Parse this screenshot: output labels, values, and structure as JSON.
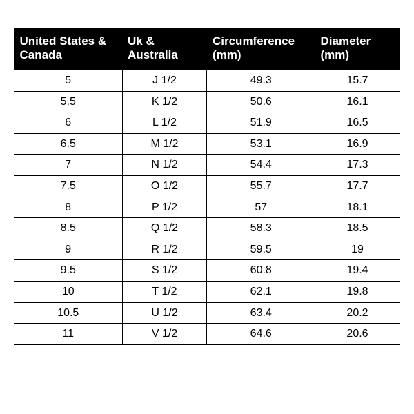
{
  "table": {
    "type": "table",
    "background_color": "#ffffff",
    "header_bg": "#000000",
    "header_fg": "#ffffff",
    "border_color": "#000000",
    "header_fontsize": 17,
    "cell_fontsize": 16,
    "columns": [
      {
        "line1": "United States &",
        "line2": "Canada"
      },
      {
        "line1": "Uk &",
        "line2": "Australia"
      },
      {
        "line1": "Circumference",
        "line2": "(mm)"
      },
      {
        "line1": "Diameter",
        "line2": "(mm)"
      }
    ],
    "rows": [
      [
        "5",
        "J 1/2",
        "49.3",
        "15.7"
      ],
      [
        "5.5",
        "K 1/2",
        "50.6",
        "16.1"
      ],
      [
        "6",
        "L 1/2",
        "51.9",
        "16.5"
      ],
      [
        "6.5",
        "M 1/2",
        "53.1",
        "16.9"
      ],
      [
        "7",
        "N 1/2",
        "54.4",
        "17.3"
      ],
      [
        "7.5",
        "O 1/2",
        "55.7",
        "17.7"
      ],
      [
        "8",
        "P 1/2",
        "57",
        "18.1"
      ],
      [
        "8.5",
        "Q 1/2",
        "58.3",
        "18.5"
      ],
      [
        "9",
        "R 1/2",
        "59.5",
        "19"
      ],
      [
        "9.5",
        "S 1/2",
        "60.8",
        "19.4"
      ],
      [
        "10",
        "T 1/2",
        "62.1",
        "19.8"
      ],
      [
        "10.5",
        "U 1/2",
        "63.4",
        "20.2"
      ],
      [
        "11",
        "V 1/2",
        "64.6",
        "20.6"
      ]
    ]
  }
}
